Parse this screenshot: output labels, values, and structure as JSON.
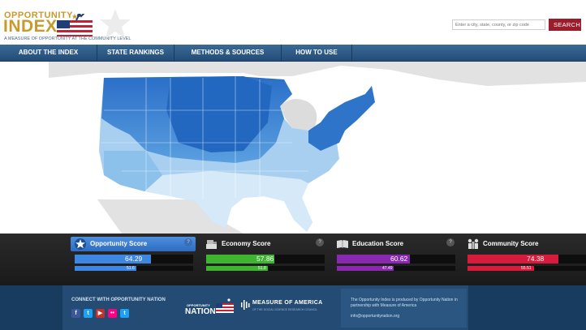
{
  "logo": {
    "word1": "OPPORTUNITY",
    "word2": "INDEX",
    "tagline": "A MEASURE OF OPPORTUNITY AT THE COMMUNITY LEVEL"
  },
  "search": {
    "placeholder": "Enter a city, state, county, or zip code",
    "button_label": "SEARCH"
  },
  "nav": {
    "items": [
      {
        "label": "ABOUT THE INDEX"
      },
      {
        "label": "STATE RANKINGS"
      },
      {
        "label": "METHODS & SOURCES"
      },
      {
        "label": "HOW TO USE"
      }
    ]
  },
  "scores": [
    {
      "label": "Opportunity Score",
      "icon": "star-icon",
      "value": "64.29",
      "benchmark": "51.6",
      "color": "#3d86e2",
      "active": true
    },
    {
      "label": "Economy Score",
      "icon": "cash-register-icon",
      "value": "57.86",
      "benchmark": "51.8",
      "color": "#3fb431",
      "active": false
    },
    {
      "label": "Education Score",
      "icon": "book-icon",
      "value": "60.62",
      "benchmark": "47.49",
      "color": "#8a28b0",
      "active": false
    },
    {
      "label": "Community Score",
      "icon": "people-icon",
      "value": "74.38",
      "benchmark": "55.51",
      "color": "#d81a3c",
      "active": false
    }
  ],
  "footer": {
    "connect_label": "CONNECT WITH OPPORTUNITY NATION",
    "social": [
      "facebook-icon",
      "twitter-icon",
      "youtube-icon",
      "flickr-icon",
      "twitter-icon"
    ],
    "nation_label": "NATION",
    "nation_small": "OPPORTUNITY",
    "measure_label": "MEASURE OF AMERICA",
    "measure_sub": "OF THE SOCIAL SCIENCE RESEARCH COUNCIL",
    "produced_text": "The Opportunity Index is produced by Opportunity Nation in partnership with Measure of America",
    "email": "info@opportunitynation.org"
  }
}
